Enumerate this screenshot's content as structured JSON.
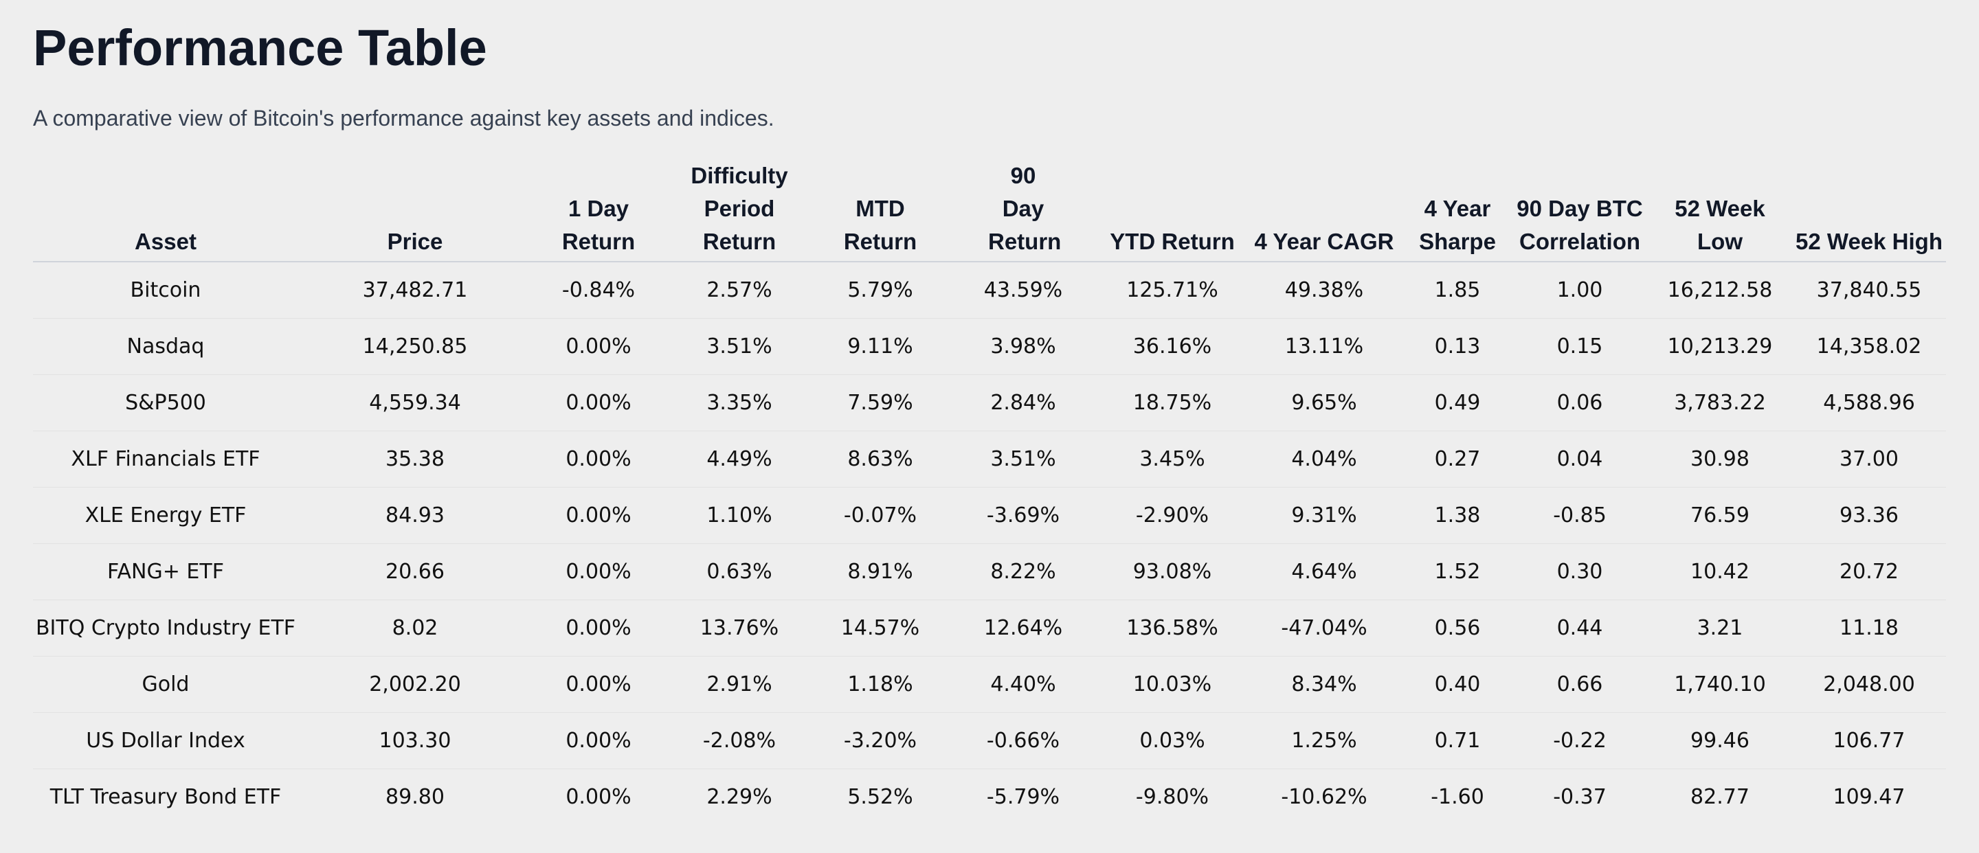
{
  "title": "Performance Table",
  "subtitle": "A comparative view of Bitcoin's performance against key assets and indices.",
  "colors": {
    "background": "#eeeeee",
    "positive": "#0f8a17",
    "negative": "#e3141b",
    "neutral": "#111111"
  },
  "table": {
    "headers": [
      "Asset",
      "Price",
      "1 Day Return",
      "Difficulty Period Return",
      "MTD Return",
      "90 Day Return",
      "YTD Return",
      "4 Year CAGR",
      "4 Year Sharpe",
      "90 Day BTC Correlation",
      "52 Week Low",
      "52 Week High"
    ],
    "rows": [
      [
        "Bitcoin",
        "37,482.71",
        "-0.84%",
        "2.57%",
        "5.79%",
        "43.59%",
        "125.71%",
        "49.38%",
        "1.85",
        "1.00",
        "16,212.58",
        "37,840.55"
      ],
      [
        "Nasdaq",
        "14,250.85",
        "0.00%",
        "3.51%",
        "9.11%",
        "3.98%",
        "36.16%",
        "13.11%",
        "0.13",
        "0.15",
        "10,213.29",
        "14,358.02"
      ],
      [
        "S&P500",
        "4,559.34",
        "0.00%",
        "3.35%",
        "7.59%",
        "2.84%",
        "18.75%",
        "9.65%",
        "0.49",
        "0.06",
        "3,783.22",
        "4,588.96"
      ],
      [
        "XLF Financials ETF",
        "35.38",
        "0.00%",
        "4.49%",
        "8.63%",
        "3.51%",
        "3.45%",
        "4.04%",
        "0.27",
        "0.04",
        "30.98",
        "37.00"
      ],
      [
        "XLE Energy ETF",
        "84.93",
        "0.00%",
        "1.10%",
        "-0.07%",
        "-3.69%",
        "-2.90%",
        "9.31%",
        "1.38",
        "-0.85",
        "76.59",
        "93.36"
      ],
      [
        "FANG+ ETF",
        "20.66",
        "0.00%",
        "0.63%",
        "8.91%",
        "8.22%",
        "93.08%",
        "4.64%",
        "1.52",
        "0.30",
        "10.42",
        "20.72"
      ],
      [
        "BITQ Crypto Industry ETF",
        "8.02",
        "0.00%",
        "13.76%",
        "14.57%",
        "12.64%",
        "136.58%",
        "-47.04%",
        "0.56",
        "0.44",
        "3.21",
        "11.18"
      ],
      [
        "Gold",
        "2,002.20",
        "0.00%",
        "2.91%",
        "1.18%",
        "4.40%",
        "10.03%",
        "8.34%",
        "0.40",
        "0.66",
        "1,740.10",
        "2,048.00"
      ],
      [
        "US Dollar Index",
        "103.30",
        "0.00%",
        "-2.08%",
        "-3.20%",
        "-0.66%",
        "0.03%",
        "1.25%",
        "0.71",
        "-0.22",
        "99.46",
        "106.77"
      ],
      [
        "TLT Treasury Bond ETF",
        "89.80",
        "0.00%",
        "2.29%",
        "5.52%",
        "-5.79%",
        "-9.80%",
        "-10.62%",
        "-1.60",
        "-0.37",
        "82.77",
        "109.47"
      ]
    ]
  }
}
